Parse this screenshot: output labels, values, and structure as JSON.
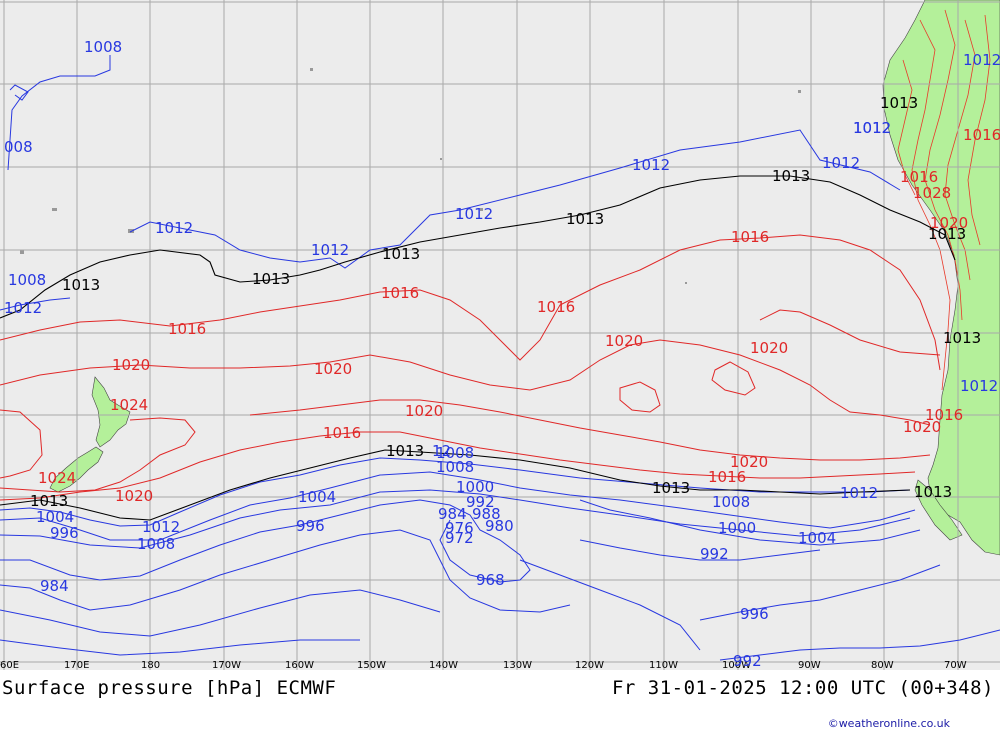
{
  "title": "Surface pressure [hPa] ECMWF",
  "valid_time": "Fr 31-01-2025 12:00 UTC (00+348)",
  "credit": "©weatheronline.co.uk",
  "colors": {
    "ocean": "#ececec",
    "land": "#b4f09a",
    "grid": "#a9a9a9",
    "low_isobar": "#2838e0",
    "high_isobar": "#e02828",
    "standard_isobar": "#000000"
  },
  "longitude_labels": [
    "60E",
    "170E",
    "180",
    "170W",
    "160W",
    "150W",
    "140W",
    "130W",
    "120W",
    "110W",
    "100W",
    "90W",
    "80W",
    "70W"
  ],
  "isobars": {
    "n1008_tl": "1008",
    "n1008_l": "008",
    "n1012_top": "1012",
    "n1012_a": "1012",
    "n1012_b": "1012",
    "n1012_c": "1012",
    "n1012_d": "1012",
    "n1012_e": "1012",
    "n1012_chile": "1012",
    "n1008_l2": "1008",
    "n1012_l": "1012",
    "n1013_l": "1013",
    "n1013_a": "1013",
    "n1013_b": "1013",
    "n1013_c": "1013",
    "n1013_d": "1013",
    "n1013_chile": "1013",
    "n1013_e": "1013",
    "n1013_f": "1013",
    "n1013_g": "1013",
    "n1013_h": "1013",
    "n1013_i": "1013",
    "n1016_a": "1016",
    "n1016_b": "1016",
    "n1016_c": "1016",
    "n1016_d": "1016",
    "n1016_e": "1016",
    "n1016_f": "1016",
    "n1016_chile": "1016",
    "n1020_a": "1020",
    "n1020_b": "1020",
    "n1020_c": "1020",
    "n1020_d": "1020",
    "n1020_e": "1020",
    "n1020_f": "1020",
    "n1020_g": "1020",
    "n1020_h": "1020",
    "n1024_a": "1024",
    "n1024_b": "1024",
    "n1008_a": "1008",
    "n1008_b": "1008",
    "n1008_c": "1008",
    "n1008_d": "1008",
    "n1004_a": "1004",
    "n1004_b": "1004",
    "n1004_c": "1004",
    "n1000_a": "1000",
    "n1000_b": "1000",
    "n996_a": "996",
    "n996_b": "996",
    "n996_c": "996",
    "n992_a": "992",
    "n992_b": "992",
    "n992_c": "992",
    "n988": "988",
    "n984_a": "984",
    "n984_b": "984",
    "n980": "980",
    "n976": "976",
    "n972": "972",
    "n968": "968",
    "n12_small": "12",
    "n1028_chile": "1028",
    "n1020_chile": "1020",
    "n1012_chile2": "1012",
    "n1016_chile2": "1016",
    "n1012_north": "1012",
    "n1013_north": "1013",
    "n1016_north": "1016",
    "n1012_ne": "1012"
  }
}
